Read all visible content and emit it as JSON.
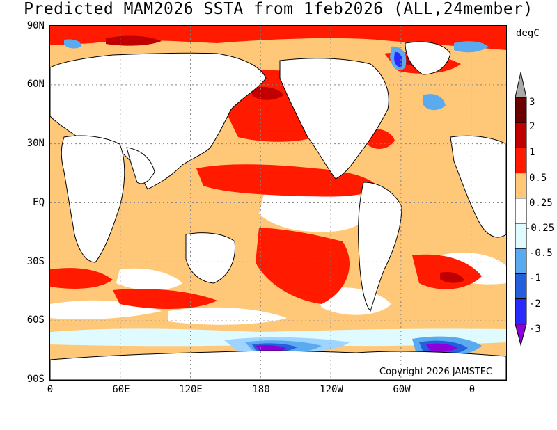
{
  "title": "Predicted MAM2026 SSTA from 1feb2026 (ALL,24member)",
  "units": "degC",
  "copyright": "Copyright 2026 JAMSTEC",
  "y_axis": [
    "90N",
    "60N",
    "30N",
    "EQ",
    "30S",
    "60S",
    "90S"
  ],
  "x_axis": [
    "0",
    "60E",
    "120E",
    "180",
    "120W",
    "60W",
    "0"
  ],
  "colorbar": {
    "labels": [
      "3",
      "2",
      "1",
      "0.5",
      "0.25",
      "-0.25",
      "-0.5",
      "-1",
      "-2",
      "-3"
    ],
    "colors": [
      "#a9a9a9",
      "#6b0000",
      "#c00000",
      "#ff1a00",
      "#ffc878",
      "#ffffff",
      "#e0fbff",
      "#5aaaf0",
      "#2460dc",
      "#2a2aff",
      "#8c00dc"
    ]
  },
  "colors": {
    "land": "#ffffff",
    "warm_025": "#ffc878",
    "warm_05": "#ff1a00",
    "warm_1": "#d20000",
    "warm_2": "#8b0000",
    "cool_025": "#e0fbff",
    "cool_05": "#9ed4ff",
    "cool_1": "#5aaaf0",
    "cool_2": "#2460dc",
    "cool_3": "#8c00dc",
    "grid": "#888888"
  }
}
